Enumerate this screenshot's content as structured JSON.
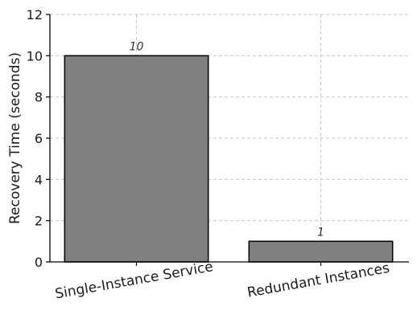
{
  "chart_data": {
    "type": "bar",
    "title": "",
    "xlabel": "",
    "ylabel": "Recovery Time (seconds)",
    "categories": [
      "Single-Instance Service",
      "Redundant Instances"
    ],
    "values": [
      10,
      1
    ],
    "data_labels": [
      "10",
      "1"
    ],
    "ylim": [
      0,
      12
    ],
    "yticks": [
      0,
      2,
      4,
      6,
      8,
      10,
      12
    ],
    "ytick_labels": [
      "0",
      "2",
      "4",
      "6",
      "8",
      "10",
      "12"
    ],
    "grid": true,
    "legend": "none",
    "bar_color": "#808080",
    "bar_edge_color": "#000000"
  }
}
